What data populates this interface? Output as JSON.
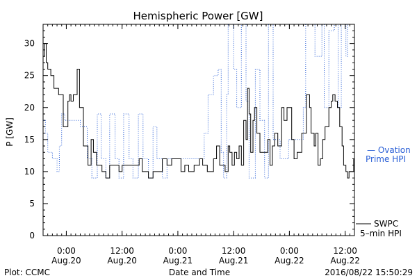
{
  "chart_data": {
    "type": "line",
    "title": "Hemispheric Power [GW]",
    "ylabel": "P [GW]",
    "xlabel": "Date and Time",
    "ylim": [
      0,
      33
    ],
    "xlim": [
      "2016-08-19T19:00",
      "2016-08-22T14:00"
    ],
    "yticks": [
      0,
      5,
      10,
      15,
      20,
      25,
      30
    ],
    "xticks": [
      {
        "time": "2016-08-20T00:00",
        "label1": "0:00",
        "label2": "Aug.20"
      },
      {
        "time": "2016-08-20T12:00",
        "label1": "12:00",
        "label2": "Aug.20"
      },
      {
        "time": "2016-08-21T00:00",
        "label1": "0:00",
        "label2": "Aug.21"
      },
      {
        "time": "2016-08-21T12:00",
        "label1": "12:00",
        "label2": "Aug.21"
      },
      {
        "time": "2016-08-22T00:00",
        "label1": "0:00",
        "label2": "Aug.22"
      },
      {
        "time": "2016-08-22T12:00",
        "label1": "12:00",
        "label2": "Aug.22"
      }
    ],
    "grid": false,
    "series": [
      {
        "name": "Ovation Prime HPI",
        "color": "#2a5fd6",
        "style": "dotted",
        "points": [
          [
            "2016-08-19T19:00",
            18
          ],
          [
            "2016-08-19T19:20",
            18
          ],
          [
            "2016-08-19T19:30",
            16
          ],
          [
            "2016-08-19T20:00",
            13
          ],
          [
            "2016-08-19T21:00",
            12
          ],
          [
            "2016-08-19T22:00",
            10
          ],
          [
            "2016-08-19T22:30",
            14
          ],
          [
            "2016-08-19T23:00",
            19
          ],
          [
            "2016-08-19T23:40",
            18
          ],
          [
            "2016-08-20T02:40",
            18
          ],
          [
            "2016-08-20T03:00",
            17
          ],
          [
            "2016-08-20T04:30",
            12
          ],
          [
            "2016-08-20T05:30",
            9
          ],
          [
            "2016-08-20T06:40",
            19
          ],
          [
            "2016-08-20T07:30",
            12
          ],
          [
            "2016-08-20T08:30",
            9
          ],
          [
            "2016-08-20T09:20",
            19
          ],
          [
            "2016-08-20T10:30",
            12
          ],
          [
            "2016-08-20T11:20",
            9
          ],
          [
            "2016-08-20T12:20",
            19
          ],
          [
            "2016-08-20T13:30",
            12
          ],
          [
            "2016-08-20T14:20",
            9
          ],
          [
            "2016-08-20T15:30",
            19
          ],
          [
            "2016-08-20T16:30",
            12
          ],
          [
            "2016-08-20T17:40",
            9
          ],
          [
            "2016-08-20T18:40",
            17
          ],
          [
            "2016-08-20T19:30",
            12
          ],
          [
            "2016-08-20T20:40",
            9
          ],
          [
            "2016-08-20T21:40",
            12
          ],
          [
            "2016-08-21T04:40",
            12
          ],
          [
            "2016-08-21T05:40",
            16
          ],
          [
            "2016-08-21T06:30",
            22
          ],
          [
            "2016-08-21T07:40",
            25
          ],
          [
            "2016-08-21T08:40",
            26
          ],
          [
            "2016-08-21T09:20",
            13
          ],
          [
            "2016-08-21T09:50",
            9
          ],
          [
            "2016-08-21T10:30",
            22
          ],
          [
            "2016-08-21T10:50",
            33
          ],
          [
            "2016-08-21T12:00",
            26
          ],
          [
            "2016-08-21T12:40",
            20
          ],
          [
            "2016-08-21T13:40",
            33
          ],
          [
            "2016-08-21T14:40",
            21
          ],
          [
            "2016-08-21T15:20",
            9
          ],
          [
            "2016-08-21T16:40",
            26
          ],
          [
            "2016-08-21T17:40",
            18
          ],
          [
            "2016-08-21T18:40",
            9
          ],
          [
            "2016-08-21T19:30",
            33
          ],
          [
            "2016-08-21T20:30",
            15
          ],
          [
            "2016-08-21T21:00",
            15
          ],
          [
            "2016-08-21T22:00",
            12
          ],
          [
            "2016-08-21T23:50",
            15
          ],
          [
            "2016-08-22T02:00",
            15
          ],
          [
            "2016-08-22T03:00",
            20
          ],
          [
            "2016-08-22T03:30",
            33
          ],
          [
            "2016-08-22T05:10",
            33
          ],
          [
            "2016-08-22T05:30",
            28
          ],
          [
            "2016-08-22T07:00",
            33
          ],
          [
            "2016-08-22T07:30",
            20
          ],
          [
            "2016-08-22T08:30",
            32
          ],
          [
            "2016-08-22T09:40",
            33
          ],
          [
            "2016-08-22T10:30",
            20
          ],
          [
            "2016-08-22T11:10",
            33
          ],
          [
            "2016-08-22T12:10",
            28
          ],
          [
            "2016-08-22T12:30",
            33
          ],
          [
            "2016-08-22T13:20",
            33
          ]
        ]
      },
      {
        "name": "SWPC 5-min HPI",
        "color": "#000000",
        "style": "solid",
        "points": [
          [
            "2016-08-19T19:00",
            28
          ],
          [
            "2016-08-19T19:20",
            30
          ],
          [
            "2016-08-19T19:40",
            27
          ],
          [
            "2016-08-19T20:00",
            26
          ],
          [
            "2016-08-19T20:40",
            25
          ],
          [
            "2016-08-19T21:20",
            23
          ],
          [
            "2016-08-19T22:20",
            22
          ],
          [
            "2016-08-19T23:20",
            17
          ],
          [
            "2016-08-19T23:50",
            17
          ],
          [
            "2016-08-20T00:20",
            21
          ],
          [
            "2016-08-20T00:40",
            22
          ],
          [
            "2016-08-20T01:00",
            21
          ],
          [
            "2016-08-20T01:30",
            22
          ],
          [
            "2016-08-20T02:20",
            26
          ],
          [
            "2016-08-20T02:50",
            20
          ],
          [
            "2016-08-20T03:40",
            14
          ],
          [
            "2016-08-20T04:40",
            11
          ],
          [
            "2016-08-20T05:20",
            15
          ],
          [
            "2016-08-20T05:50",
            13
          ],
          [
            "2016-08-20T06:30",
            11
          ],
          [
            "2016-08-20T07:40",
            10
          ],
          [
            "2016-08-20T08:30",
            9
          ],
          [
            "2016-08-20T09:20",
            11
          ],
          [
            "2016-08-20T10:40",
            11
          ],
          [
            "2016-08-20T11:20",
            10
          ],
          [
            "2016-08-20T12:00",
            11
          ],
          [
            "2016-08-20T14:30",
            11
          ],
          [
            "2016-08-20T15:40",
            12
          ],
          [
            "2016-08-20T16:20",
            10
          ],
          [
            "2016-08-20T17:40",
            9
          ],
          [
            "2016-08-20T18:40",
            10
          ],
          [
            "2016-08-20T19:50",
            10
          ],
          [
            "2016-08-20T20:40",
            12
          ],
          [
            "2016-08-20T21:40",
            11
          ],
          [
            "2016-08-20T22:40",
            12
          ],
          [
            "2016-08-21T00:40",
            10
          ],
          [
            "2016-08-21T01:30",
            11
          ],
          [
            "2016-08-21T02:20",
            10
          ],
          [
            "2016-08-21T03:30",
            11
          ],
          [
            "2016-08-21T04:40",
            12
          ],
          [
            "2016-08-21T05:20",
            11
          ],
          [
            "2016-08-21T06:20",
            10
          ],
          [
            "2016-08-21T07:40",
            12
          ],
          [
            "2016-08-21T08:20",
            14
          ],
          [
            "2016-08-21T09:00",
            11
          ],
          [
            "2016-08-21T10:10",
            10
          ],
          [
            "2016-08-21T10:50",
            14
          ],
          [
            "2016-08-21T11:10",
            13
          ],
          [
            "2016-08-21T11:40",
            11
          ],
          [
            "2016-08-21T12:10",
            13
          ],
          [
            "2016-08-21T12:40",
            12
          ],
          [
            "2016-08-21T13:10",
            14
          ],
          [
            "2016-08-21T13:40",
            11
          ],
          [
            "2016-08-21T14:10",
            18
          ],
          [
            "2016-08-21T14:40",
            15
          ],
          [
            "2016-08-21T15:00",
            23
          ],
          [
            "2016-08-21T15:20",
            19
          ],
          [
            "2016-08-21T15:40",
            13
          ],
          [
            "2016-08-21T16:10",
            18
          ],
          [
            "2016-08-21T16:30",
            20
          ],
          [
            "2016-08-21T17:00",
            16
          ],
          [
            "2016-08-21T17:40",
            13
          ],
          [
            "2016-08-21T18:40",
            13
          ],
          [
            "2016-08-21T19:20",
            15
          ],
          [
            "2016-08-21T19:50",
            11
          ],
          [
            "2016-08-21T20:20",
            14
          ],
          [
            "2016-08-21T20:50",
            16
          ],
          [
            "2016-08-21T21:30",
            14
          ],
          [
            "2016-08-21T22:20",
            20
          ],
          [
            "2016-08-21T22:50",
            18
          ],
          [
            "2016-08-21T23:30",
            20
          ],
          [
            "2016-08-22T00:30",
            15
          ],
          [
            "2016-08-22T01:00",
            12
          ],
          [
            "2016-08-22T01:40",
            13
          ],
          [
            "2016-08-22T02:40",
            16
          ],
          [
            "2016-08-22T03:10",
            16
          ],
          [
            "2016-08-22T03:40",
            22
          ],
          [
            "2016-08-22T04:20",
            20
          ],
          [
            "2016-08-22T04:40",
            16
          ],
          [
            "2016-08-22T05:20",
            14
          ],
          [
            "2016-08-22T05:40",
            16
          ],
          [
            "2016-08-22T06:10",
            11
          ],
          [
            "2016-08-22T06:40",
            12
          ],
          [
            "2016-08-22T07:10",
            15
          ],
          [
            "2016-08-22T07:40",
            17
          ],
          [
            "2016-08-22T08:30",
            20
          ],
          [
            "2016-08-22T09:00",
            21
          ],
          [
            "2016-08-22T09:20",
            22
          ],
          [
            "2016-08-22T09:50",
            21
          ],
          [
            "2016-08-22T10:20",
            20
          ],
          [
            "2016-08-22T10:50",
            17
          ],
          [
            "2016-08-22T11:20",
            14
          ],
          [
            "2016-08-22T11:40",
            11
          ],
          [
            "2016-08-22T12:10",
            10
          ],
          [
            "2016-08-22T12:30",
            9
          ],
          [
            "2016-08-22T12:50",
            10
          ],
          [
            "2016-08-22T13:30",
            10
          ],
          [
            "2016-08-22T13:50",
            12
          ],
          [
            "2016-08-22T14:00",
            15
          ]
        ]
      }
    ],
    "legend": {
      "placement": "right",
      "ovation_label_1": "— Ovation",
      "ovation_label_2": "Prime HPI",
      "swpc_label_1": "SWPC",
      "swpc_label_2": "5–min HPI"
    }
  },
  "footer": {
    "left": "Plot: CCMC",
    "center": "Date and Time",
    "right": "2016/08/22 15:50:29"
  }
}
